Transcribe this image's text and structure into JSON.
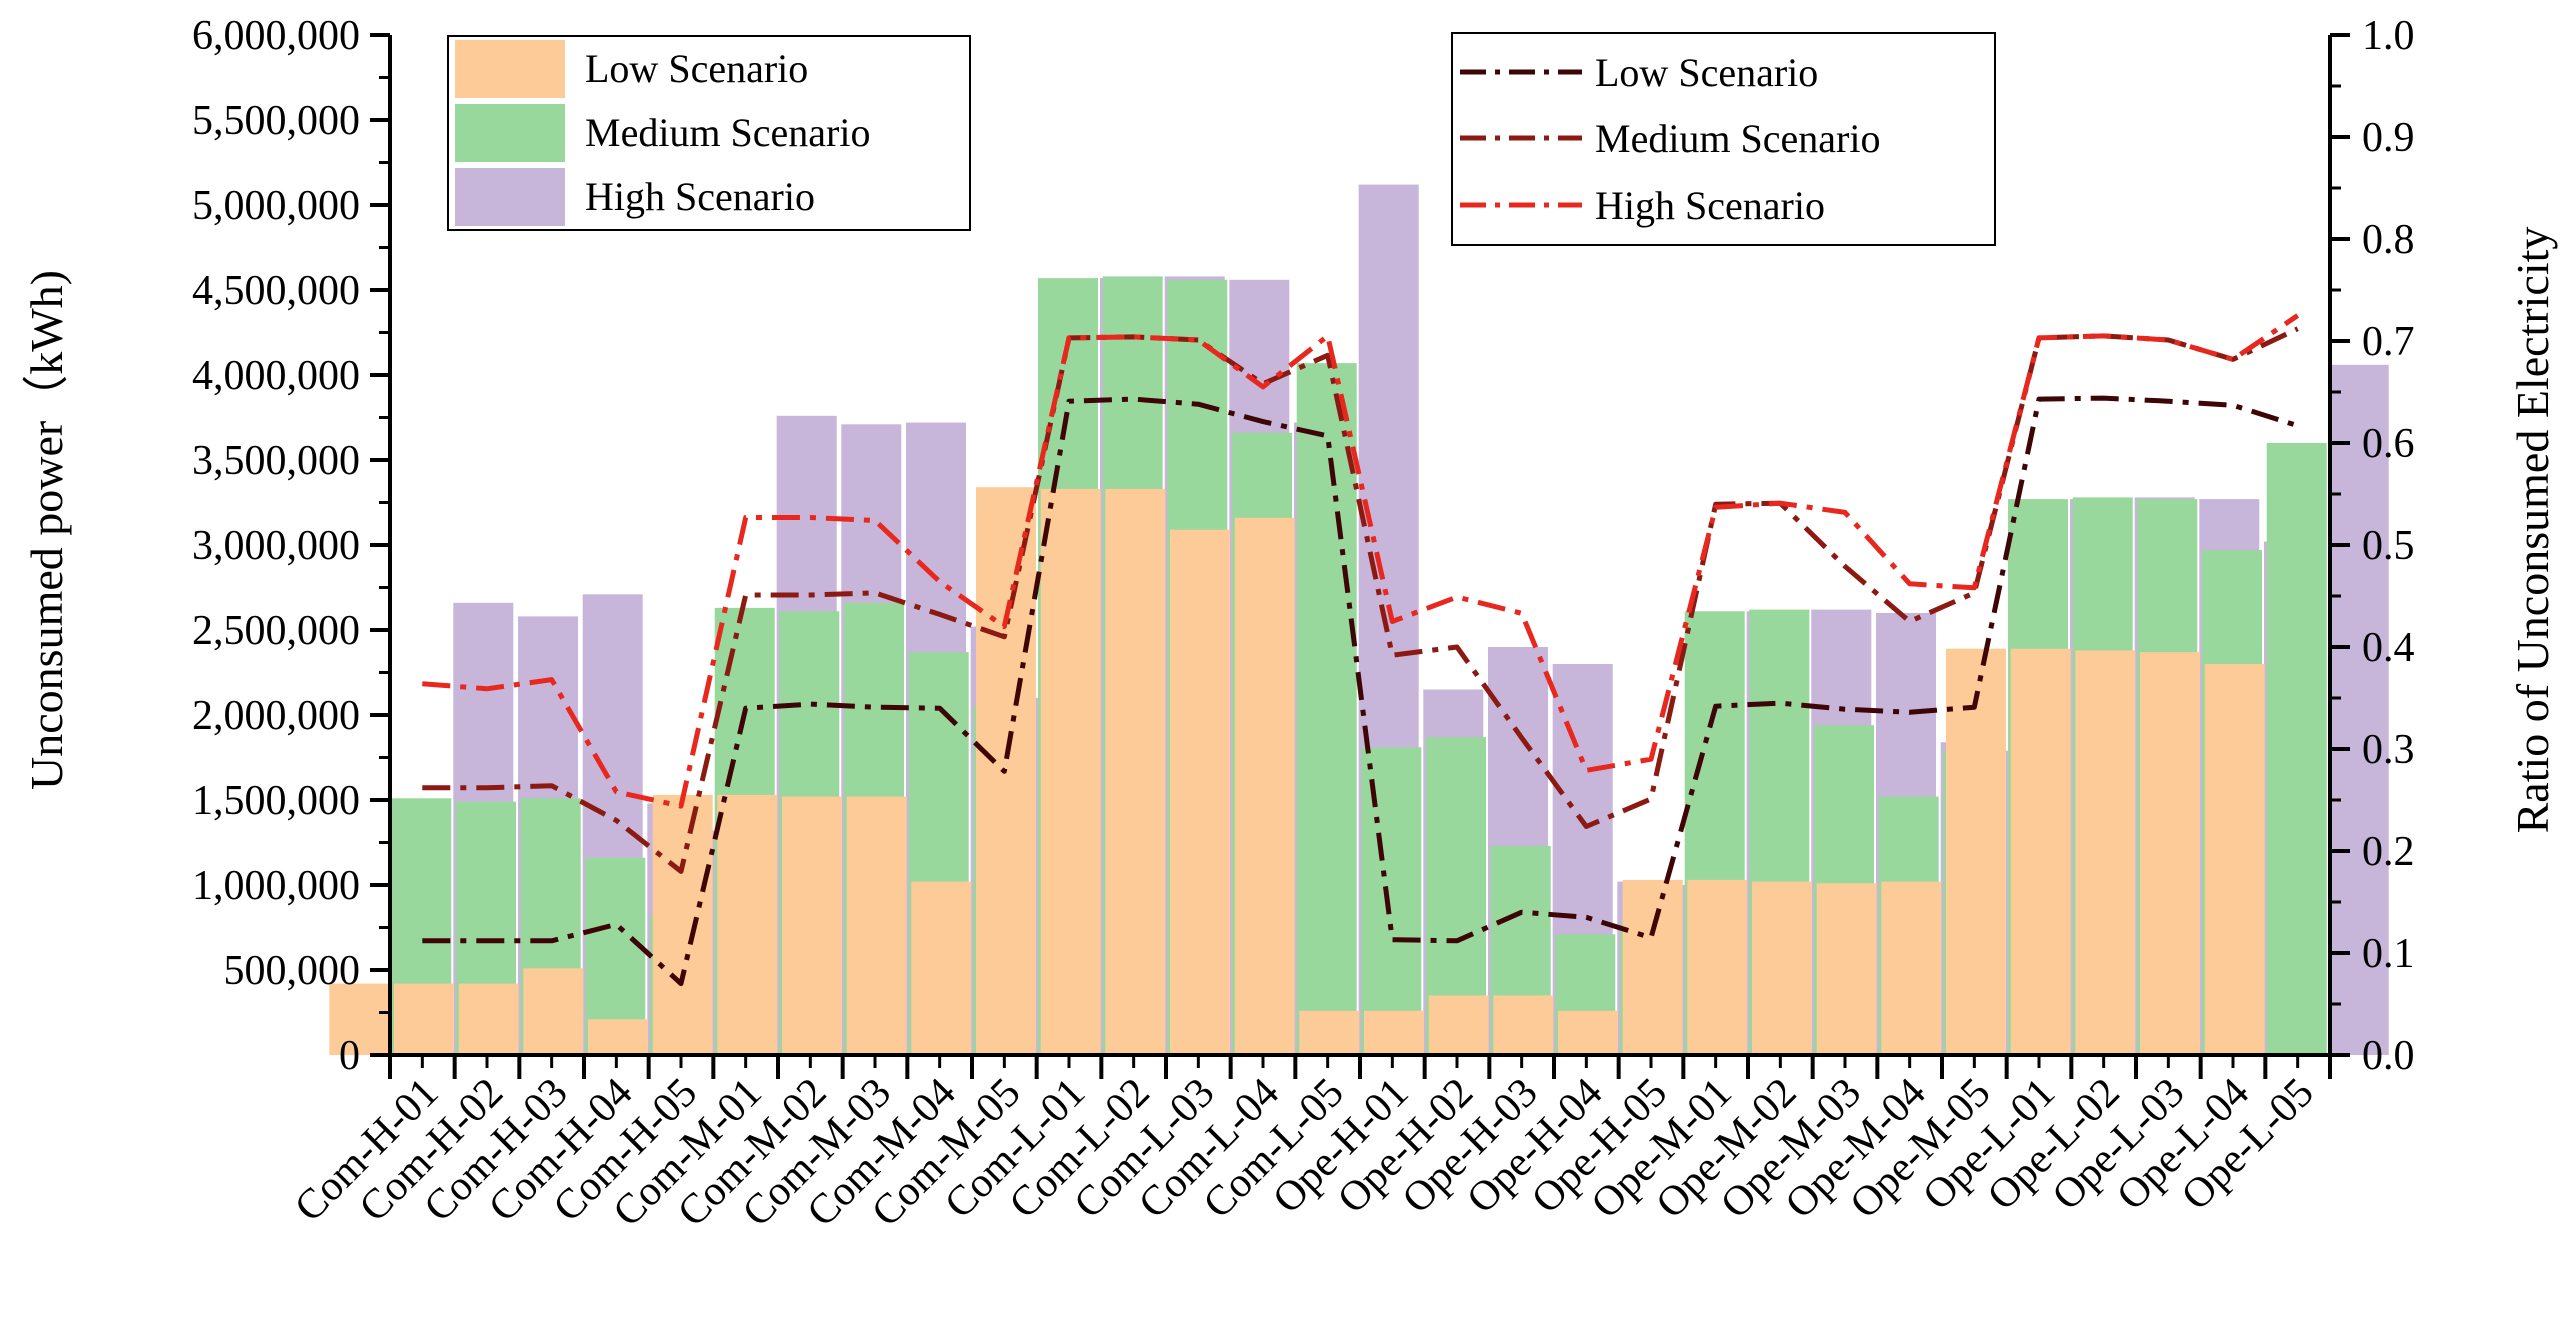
{
  "chart_data": {
    "type": "bar+line",
    "categories": [
      "Com-H-01",
      "Com-H-02",
      "Com-H-03",
      "Com-H-04",
      "Com-H-05",
      "Com-M-01",
      "Com-M-02",
      "Com-M-03",
      "Com-M-04",
      "Com-M-05",
      "Com-L-01",
      "Com-L-02",
      "Com-L-03",
      "Com-L-04",
      "Com-L-05",
      "Ope-H-01",
      "Ope-H-02",
      "Ope-H-03",
      "Ope-H-04",
      "Ope-H-05",
      "Ope-M-01",
      "Ope-M-02",
      "Ope-M-03",
      "Ope-M-04",
      "Ope-M-05",
      "Ope-L-01",
      "Ope-L-02",
      "Ope-L-03",
      "Ope-L-04",
      "Ope-L-05"
    ],
    "ylabel_left": "Unconsumed power（kWh)",
    "ylabel_right": "Ratio of Unconsumed Electricity",
    "ylim_left": [
      0,
      6000000
    ],
    "ylim_right": [
      0,
      1.0
    ],
    "yticks_left": [
      "0",
      "500,000",
      "1,000,000",
      "1,500,000",
      "2,000,000",
      "2,500,000",
      "3,000,000",
      "3,500,000",
      "4,000,000",
      "4,500,000",
      "5,000,000",
      "5,500,000",
      "6,000,000"
    ],
    "yticks_right": [
      "0.0",
      "0.1",
      "0.2",
      "0.3",
      "0.4",
      "0.5",
      "0.6",
      "0.7",
      "0.8",
      "0.9",
      "1.0"
    ],
    "bar_series": [
      {
        "name": "Low Scenario",
        "color": "#FDCB97",
        "values": [
          420000,
          420000,
          420000,
          510000,
          210000,
          1530000,
          1530000,
          1520000,
          1520000,
          1020000,
          3340000,
          3330000,
          3330000,
          3090000,
          3160000,
          260000,
          260000,
          350000,
          350000,
          260000,
          1030000,
          1030000,
          1020000,
          1010000,
          1020000,
          2390000,
          2390000,
          2380000,
          2370000,
          2300000
        ]
      },
      {
        "name": "Medium Scenario",
        "color": "#98D89C",
        "values": [
          1510000,
          1490000,
          1510000,
          1160000,
          820000,
          2630000,
          2610000,
          2660000,
          2370000,
          2050000,
          4570000,
          4580000,
          4560000,
          3660000,
          4070000,
          1810000,
          1870000,
          1230000,
          710000,
          770000,
          2610000,
          2620000,
          1940000,
          1520000,
          1790000,
          3270000,
          3280000,
          3270000,
          2970000,
          3600000
        ]
      },
      {
        "name": "High Scenario",
        "color": "#C7B5DA",
        "values": [
          2660000,
          2580000,
          2710000,
          1480000,
          1320000,
          3760000,
          3710000,
          3720000,
          2520000,
          2100000,
          4570000,
          4580000,
          4560000,
          3720000,
          5120000,
          2150000,
          2400000,
          2300000,
          1020000,
          1000000,
          2610000,
          2620000,
          2600000,
          1840000,
          1790000,
          3270000,
          3280000,
          3270000,
          3020000,
          4060000
        ]
      }
    ],
    "line_series": [
      {
        "name": "Low Scenario",
        "color": "#3D0505",
        "values": [
          0.112,
          0.112,
          0.112,
          0.128,
          0.07,
          0.34,
          0.344,
          0.341,
          0.34,
          0.278,
          0.641,
          0.643,
          0.638,
          0.621,
          0.607,
          0.113,
          0.112,
          0.14,
          0.135,
          0.115,
          0.342,
          0.345,
          0.339,
          0.336,
          0.341,
          0.643,
          0.644,
          0.641,
          0.637,
          0.617
        ]
      },
      {
        "name": "Medium Scenario",
        "color": "#8B1A12",
        "values": [
          0.262,
          0.262,
          0.264,
          0.23,
          0.18,
          0.451,
          0.451,
          0.453,
          0.432,
          0.41,
          0.703,
          0.704,
          0.701,
          0.658,
          0.686,
          0.392,
          0.4,
          0.311,
          0.224,
          0.251,
          0.54,
          0.541,
          0.479,
          0.425,
          0.453,
          0.703,
          0.705,
          0.701,
          0.682,
          0.712
        ]
      },
      {
        "name": "High Scenario",
        "color": "#E8281E",
        "values": [
          0.364,
          0.359,
          0.368,
          0.258,
          0.244,
          0.527,
          0.527,
          0.524,
          0.464,
          0.42,
          0.703,
          0.704,
          0.701,
          0.655,
          0.705,
          0.425,
          0.449,
          0.433,
          0.279,
          0.29,
          0.537,
          0.541,
          0.532,
          0.462,
          0.458,
          0.703,
          0.705,
          0.701,
          0.682,
          0.725
        ]
      }
    ]
  }
}
